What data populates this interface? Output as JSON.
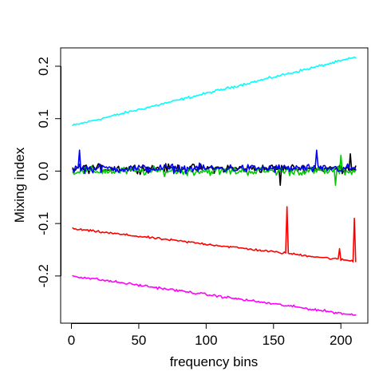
{
  "chart_data": {
    "type": "line",
    "title": "",
    "xlabel": "frequency bins",
    "ylabel": "Mixing index",
    "xlim": [
      -8,
      220
    ],
    "ylim": [
      -0.29,
      0.235
    ],
    "x_ticks": [
      0,
      50,
      100,
      150,
      200
    ],
    "y_ticks": [
      -0.2,
      -0.1,
      0.0,
      0.1,
      0.2
    ],
    "y_tick_labels": [
      "-0.2",
      "-0.1",
      "0.0",
      "0.1",
      "0.2"
    ],
    "grid": false,
    "legend": "none",
    "x": [
      1,
      211
    ],
    "series": [
      {
        "color": "#00FFFF",
        "start": 0.087,
        "end": 0.217,
        "noise": 0.0035,
        "spikes": []
      },
      {
        "color": "#000000",
        "start": 0.005,
        "end": 0.005,
        "noise": 0.012,
        "spikes": [
          {
            "x": 155,
            "y": -0.027
          },
          {
            "x": 207,
            "y": 0.033
          }
        ]
      },
      {
        "color": "#00CC00",
        "start": 0.0,
        "end": 0.0,
        "noise": 0.012,
        "spikes": [
          {
            "x": 200,
            "y": 0.03
          },
          {
            "x": 196,
            "y": -0.027
          }
        ]
      },
      {
        "color": "#0000FF",
        "start": 0.005,
        "end": 0.005,
        "noise": 0.012,
        "spikes": [
          {
            "x": 6,
            "y": 0.04
          },
          {
            "x": 182,
            "y": 0.04
          }
        ]
      },
      {
        "color": "#FF0000",
        "start": -0.11,
        "end": -0.172,
        "noise": 0.003,
        "spikes": [
          {
            "x": 160,
            "y": -0.068
          },
          {
            "x": 199,
            "y": -0.148
          },
          {
            "x": 210,
            "y": -0.09
          }
        ]
      },
      {
        "color": "#FF00FF",
        "start": -0.2,
        "end": -0.275,
        "noise": 0.0035,
        "spikes": []
      }
    ]
  }
}
